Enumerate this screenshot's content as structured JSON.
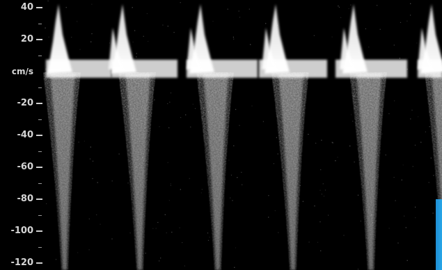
{
  "scale": {
    "unit_label": "cm/s",
    "ticks": [
      {
        "label": "40",
        "value": 40
      },
      {
        "label": "20",
        "value": 20
      },
      {
        "label": "-20",
        "value": -20
      },
      {
        "label": "-40",
        "value": -40
      },
      {
        "label": "-60",
        "value": -60
      },
      {
        "label": "-80",
        "value": -80
      },
      {
        "label": "-100",
        "value": -100
      },
      {
        "label": "-120",
        "value": -120
      }
    ]
  },
  "colors": {
    "background": "#000000",
    "signal": "#ffffff",
    "accent_tab": "#1f8fd6"
  }
}
